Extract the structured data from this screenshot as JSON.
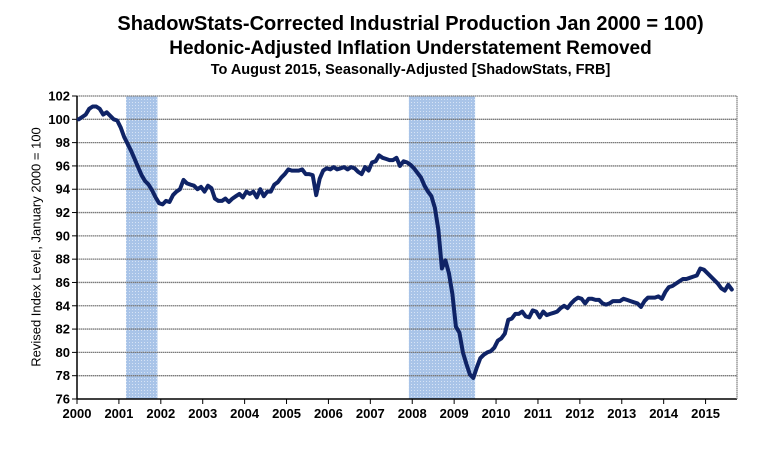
{
  "chart_data": {
    "type": "line",
    "title": "ShadowStats-Corrected Industrial Production Jan 2000 = 100)",
    "subtitle": "Hedonic-Adjusted Inflation Understatement Removed",
    "subtitle2": "To August 2015, Seasonally-Adjusted [ShadowStats, FRB]",
    "xlabel": "",
    "ylabel": "Revised Index Level, January 2000 = 100",
    "ylim": [
      76,
      102
    ],
    "yticks": [
      "76",
      "78",
      "80",
      "82",
      "84",
      "86",
      "88",
      "90",
      "92",
      "94",
      "96",
      "98",
      "100",
      "102"
    ],
    "xlim": [
      2000.0,
      2015.75
    ],
    "xticks": [
      "2000",
      "2001",
      "2002",
      "2003",
      "2004",
      "2005",
      "2006",
      "2007",
      "2008",
      "2009",
      "2010",
      "2011",
      "2012",
      "2013",
      "2014",
      "2015"
    ],
    "grid": "horizontal",
    "line_color": "#0f2366",
    "recession_color": "#a9c4e8",
    "recessions": [
      {
        "start": 2001.17,
        "end": 2001.92,
        "label": "Mar 2001 - Nov 2001"
      },
      {
        "start": 2007.92,
        "end": 2009.5,
        "label": "Dec 2007 - Jun 2009"
      }
    ],
    "series": [
      {
        "name": "ShadowStats-Corrected Industrial Production",
        "start": "2000-01",
        "frequency": "monthly",
        "values": [
          100.0,
          100.2,
          100.4,
          100.9,
          101.1,
          101.1,
          100.9,
          100.4,
          100.6,
          100.3,
          100.0,
          99.9,
          99.3,
          98.5,
          97.9,
          97.3,
          96.6,
          95.9,
          95.2,
          94.7,
          94.4,
          93.9,
          93.3,
          92.8,
          92.7,
          93.0,
          92.9,
          93.5,
          93.8,
          94.0,
          94.8,
          94.5,
          94.4,
          94.3,
          94.0,
          94.2,
          93.8,
          94.3,
          94.1,
          93.2,
          93.0,
          93.0,
          93.2,
          92.9,
          93.2,
          93.4,
          93.6,
          93.3,
          93.8,
          93.6,
          93.8,
          93.3,
          94.0,
          93.4,
          93.8,
          93.8,
          94.4,
          94.6,
          95.0,
          95.3,
          95.7,
          95.6,
          95.6,
          95.6,
          95.7,
          95.3,
          95.3,
          95.2,
          93.5,
          94.9,
          95.6,
          95.8,
          95.7,
          95.9,
          95.7,
          95.8,
          95.9,
          95.7,
          95.9,
          95.8,
          95.5,
          95.3,
          95.9,
          95.6,
          96.3,
          96.4,
          96.9,
          96.7,
          96.6,
          96.5,
          96.5,
          96.7,
          96.0,
          96.4,
          96.3,
          96.1,
          95.8,
          95.4,
          95.0,
          94.3,
          93.8,
          93.4,
          92.4,
          90.5,
          87.2,
          87.9,
          86.8,
          85.0,
          82.2,
          81.7,
          80.0,
          79.0,
          78.1,
          77.8,
          78.7,
          79.5,
          79.8,
          80.0,
          80.1,
          80.4,
          81.0,
          81.2,
          81.6,
          82.8,
          82.9,
          83.3,
          83.3,
          83.5,
          83.1,
          83.0,
          83.6,
          83.5,
          83.0,
          83.5,
          83.2,
          83.3,
          83.4,
          83.5,
          83.8,
          84.0,
          83.8,
          84.2,
          84.5,
          84.7,
          84.6,
          84.2,
          84.6,
          84.6,
          84.5,
          84.5,
          84.2,
          84.1,
          84.2,
          84.4,
          84.4,
          84.4,
          84.6,
          84.5,
          84.4,
          84.3,
          84.2,
          83.9,
          84.4,
          84.7,
          84.7,
          84.7,
          84.8,
          84.6,
          85.2,
          85.6,
          85.7,
          85.9,
          86.1,
          86.3,
          86.3,
          86.4,
          86.5,
          86.6,
          87.2,
          87.1,
          86.8,
          86.5,
          86.2,
          85.9,
          85.5,
          85.3,
          85.8,
          85.4
        ]
      }
    ]
  }
}
